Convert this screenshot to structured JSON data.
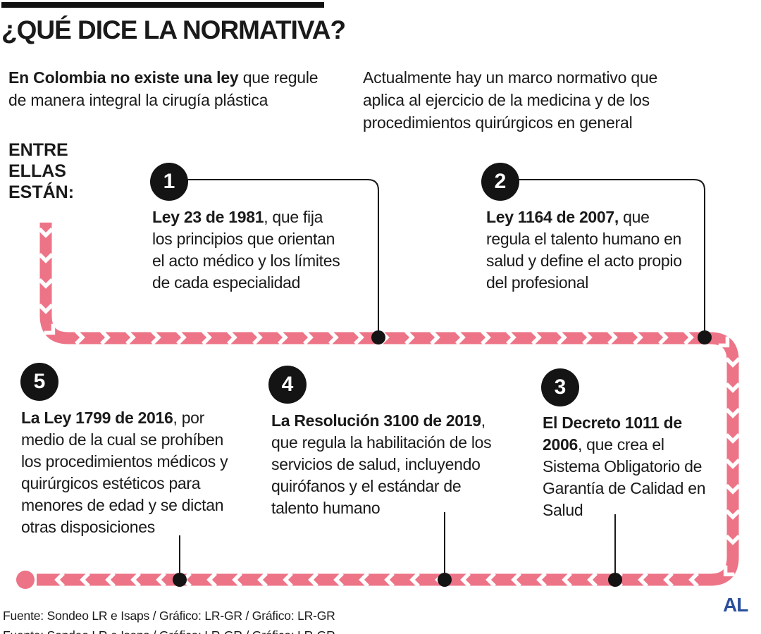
{
  "header": {
    "title": "¿QUÉ DICE LA NORMATIVA?"
  },
  "intro": {
    "left_bold": "En Colombia no existe una ley",
    "left_rest": " que regule\nde manera integral la cirugía plástica",
    "right": "Actualmente hay un marco normativo que\naplica al ejercicio de la medicina y de los\nprocedimientos quirúrgicos en general"
  },
  "timeline": {
    "label": "ENTRE\nELLAS\nESTÁN:",
    "items": [
      {
        "number": "1",
        "lead": "Ley 23 de 1981",
        "rest": ", que fija\nlos principios que orientan\nel acto médico y los límites\nde cada especialidad"
      },
      {
        "number": "2",
        "lead": "Ley 1164 de 2007,",
        "rest": " que\nregula el talento humano en\nsalud y define el acto propio\ndel profesional"
      },
      {
        "number": "3",
        "lead": "El Decreto 1011 de\n2006",
        "rest": ", que crea el\nSistema Obligatorio de\nGarantía de Calidad en\nSalud"
      },
      {
        "number": "4",
        "lead": "La Resolución 3100 de 2019",
        "rest": ",\nque regula la habilitación de los\nservicios de salud, incluyendo\nquirófanos y el estándar de\ntalento humano"
      },
      {
        "number": "5",
        "lead": "La Ley 1799 de 2016",
        "rest": ", por\nmedio de la cual se prohíben\nlos procedimientos médicos y\nquirúrgicos estéticos para\nmenores de edad y se dictan\notras disposiciones"
      }
    ]
  },
  "footer": {
    "source": "Fuente: Sondeo LR e Isaps / Gráfico: LR-GR / Gráfico: LR-GR",
    "logo": "AL"
  },
  "colors": {
    "accent_pink": "#ED7386",
    "ink_black": "#1A1A1A",
    "logo_blue": "#2A4E9B"
  }
}
